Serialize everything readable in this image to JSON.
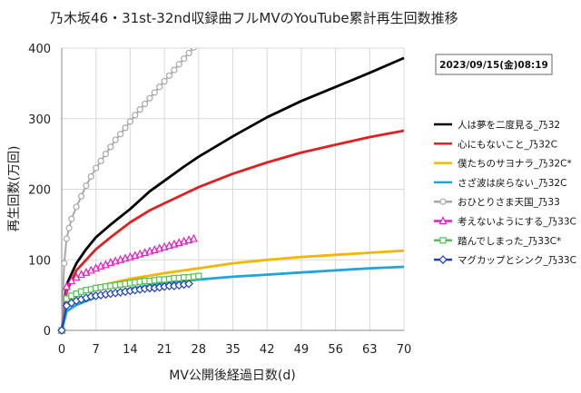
{
  "chart_data": {
    "type": "line",
    "title": "乃木坂46・31st-32nd収録曲フルMVのYouTube累計再生回数推移",
    "xlabel": "MV公開後経過日数(d)",
    "ylabel": "再生回数(万回)",
    "date_label": "2023/09/15(金)08:19",
    "xlim": [
      0,
      70
    ],
    "ylim": [
      0,
      400
    ],
    "x_ticks": [
      0,
      7,
      14,
      21,
      28,
      35,
      42,
      49,
      56,
      63,
      70
    ],
    "y_ticks": [
      0,
      100,
      200,
      300,
      400
    ],
    "grid": true,
    "legend_position": "right",
    "series": [
      {
        "name": "人は夢を二度見る_乃32",
        "color": "#000000",
        "marker": "none",
        "x": [
          0,
          1,
          3,
          5,
          7,
          10,
          14,
          18,
          21,
          25,
          28,
          35,
          42,
          49,
          56,
          63,
          70
        ],
        "y": [
          0,
          65,
          95,
          115,
          132,
          150,
          172,
          197,
          212,
          232,
          246,
          275,
          302,
          325,
          345,
          365,
          386
        ]
      },
      {
        "name": "心にもないこと_乃32C",
        "color": "#e02020",
        "marker": "none",
        "x": [
          0,
          1,
          3,
          5,
          7,
          10,
          14,
          18,
          21,
          25,
          28,
          35,
          42,
          49,
          56,
          63,
          70
        ],
        "y": [
          0,
          55,
          85,
          100,
          115,
          132,
          153,
          170,
          180,
          193,
          203,
          222,
          238,
          252,
          263,
          274,
          283
        ]
      },
      {
        "name": "僕たちのサヨナラ_乃32C*",
        "color": "#f2b600",
        "marker": "none",
        "x": [
          0,
          1,
          3,
          7,
          14,
          21,
          28,
          35,
          42,
          49,
          56,
          63,
          70
        ],
        "y": [
          0,
          42,
          52,
          62,
          73,
          81,
          88,
          95,
          100,
          104,
          107,
          110,
          113
        ]
      },
      {
        "name": "さざ波は戻らない_乃32C",
        "color": "#1fa5d9",
        "marker": "none",
        "x": [
          0,
          1,
          3,
          7,
          14,
          21,
          28,
          35,
          42,
          49,
          56,
          63,
          70
        ],
        "y": [
          0,
          27,
          36,
          47,
          59,
          67,
          72,
          76,
          79,
          82,
          85,
          88,
          90
        ]
      },
      {
        "name": "おひとりさま天国_乃33",
        "color": "#a8a8a8",
        "marker": "circle",
        "x": [
          0,
          0.5,
          1,
          1.5,
          2,
          3,
          4,
          5,
          6,
          7,
          8,
          9,
          10,
          11,
          12,
          13,
          14,
          15,
          16,
          17,
          18,
          19,
          20,
          21,
          22,
          23,
          24,
          25,
          26,
          27
        ],
        "y": [
          0,
          95,
          130,
          145,
          158,
          175,
          190,
          205,
          218,
          230,
          240,
          250,
          260,
          270,
          278,
          287,
          296,
          305,
          313,
          321,
          329,
          337,
          345,
          353,
          361,
          369,
          377,
          385,
          393,
          401
        ]
      },
      {
        "name": "考えないようにする_乃33C",
        "color": "#e020c0",
        "marker": "triangle",
        "x": [
          0,
          1,
          2,
          3,
          4,
          5,
          6,
          7,
          8,
          9,
          10,
          11,
          12,
          13,
          14,
          15,
          16,
          17,
          18,
          19,
          20,
          21,
          22,
          23,
          24,
          25,
          26,
          27
        ],
        "y": [
          0,
          62,
          70,
          75,
          79,
          82,
          85,
          88,
          91,
          93,
          96,
          98,
          100,
          102,
          104,
          106,
          108,
          110,
          112,
          114,
          116,
          118,
          120,
          122,
          124,
          126,
          128,
          130
        ]
      },
      {
        "name": "踏んでしまった_乃33C*",
        "color": "#50c050",
        "marker": "square",
        "x": [
          0,
          1,
          2,
          3,
          4,
          5,
          6,
          7,
          8,
          9,
          10,
          11,
          12,
          13,
          14,
          15,
          16,
          17,
          18,
          19,
          20,
          21,
          22,
          23,
          24,
          25,
          26,
          27,
          28
        ],
        "y": [
          0,
          45,
          49,
          52,
          55,
          57,
          58,
          60,
          61,
          62,
          63,
          64,
          65,
          66,
          67,
          68,
          69,
          70,
          70,
          71,
          72,
          72,
          73,
          74,
          74,
          75,
          75,
          76,
          77
        ]
      },
      {
        "name": "マグカップとシンク_乃33C",
        "color": "#2040b0",
        "marker": "diamond",
        "x": [
          0,
          1,
          2,
          3,
          4,
          5,
          6,
          7,
          8,
          9,
          10,
          11,
          12,
          13,
          14,
          15,
          16,
          17,
          18,
          19,
          20,
          21,
          22,
          23,
          24,
          25,
          26
        ],
        "y": [
          0,
          35,
          39,
          42,
          44,
          46,
          48,
          49,
          50,
          51,
          52,
          53,
          54,
          55,
          56,
          57,
          58,
          59,
          60,
          60,
          61,
          62,
          63,
          63,
          64,
          65,
          66
        ]
      }
    ]
  }
}
